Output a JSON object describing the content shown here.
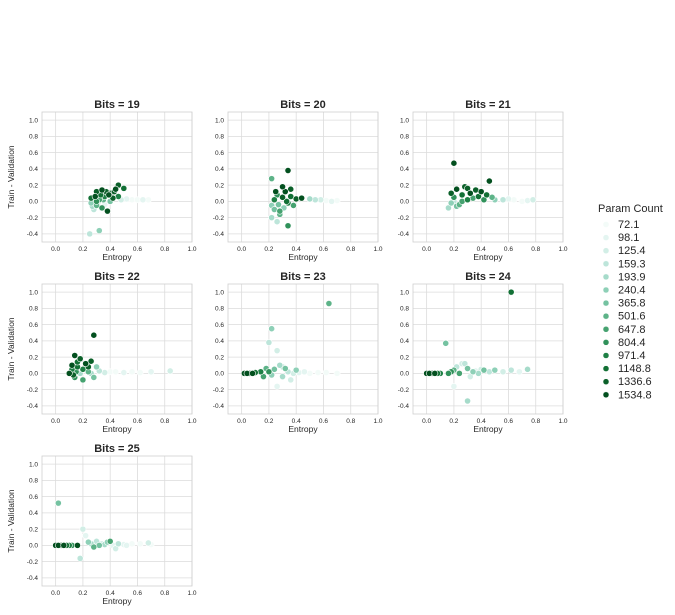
{
  "chart_data": {
    "type": "scatter",
    "xlabel": "Entropy",
    "ylabel": "Train - Validation",
    "xlim": [
      -0.1,
      1.0
    ],
    "ylim": [
      -0.5,
      1.1
    ],
    "xticks": [
      "0.0",
      "0.2",
      "0.4",
      "0.6",
      "0.8",
      "1.0"
    ],
    "yticks": [
      "-0.4",
      "-0.2",
      "0.0",
      "0.2",
      "0.4",
      "0.6",
      "0.8",
      "1.0"
    ],
    "grid": true,
    "legend": {
      "title": "Param Count",
      "placement": "right",
      "entries": [
        "72.1",
        "98.1",
        "125.4",
        "159.3",
        "193.9",
        "240.4",
        "365.8",
        "501.6",
        "647.8",
        "804.4",
        "971.4",
        "1148.8",
        "1336.6",
        "1534.8"
      ],
      "colors": [
        "#f3fbf8",
        "#e4f5f1",
        "#d2eee6",
        "#bde5da",
        "#a6dbca",
        "#8ed0b7",
        "#75c2a1",
        "#5db388",
        "#46a270",
        "#30915a",
        "#1e8045",
        "#127035",
        "#0b6029",
        "#03501f"
      ]
    },
    "panels": [
      {
        "title": "Bits = 19",
        "points": [
          [
            0.56,
            0.02,
            0
          ],
          [
            0.6,
            0.02,
            0
          ],
          [
            0.64,
            0.02,
            1
          ],
          [
            0.68,
            0.02,
            0
          ],
          [
            0.52,
            0.03,
            1
          ],
          [
            0.48,
            0.02,
            2
          ],
          [
            0.26,
            -0.02,
            5
          ],
          [
            0.28,
            0.04,
            6
          ],
          [
            0.3,
            -0.05,
            7
          ],
          [
            0.32,
            0.02,
            8
          ],
          [
            0.34,
            -0.08,
            9
          ],
          [
            0.36,
            0.06,
            10
          ],
          [
            0.4,
            0.1,
            11
          ],
          [
            0.42,
            0.04,
            12
          ],
          [
            0.44,
            0.15,
            13
          ],
          [
            0.38,
            -0.12,
            13
          ],
          [
            0.28,
            -0.1,
            3
          ],
          [
            0.3,
            0.12,
            12
          ],
          [
            0.34,
            0.14,
            13
          ],
          [
            0.46,
            0.06,
            10
          ],
          [
            0.5,
            0.16,
            11
          ],
          [
            0.25,
            -0.4,
            3
          ],
          [
            0.32,
            -0.36,
            5
          ],
          [
            0.46,
            0.2,
            12
          ],
          [
            0.27,
            -0.06,
            4
          ],
          [
            0.3,
            0.0,
            9
          ],
          [
            0.33,
            0.08,
            11
          ],
          [
            0.37,
            0.12,
            12
          ],
          [
            0.4,
            0.0,
            6
          ],
          [
            0.29,
            0.06,
            13
          ],
          [
            0.31,
            -0.02,
            2
          ],
          [
            0.35,
            0.02,
            7
          ],
          [
            0.39,
            0.08,
            13
          ],
          [
            0.43,
            0.12,
            12
          ],
          [
            0.26,
            0.04,
            11
          ],
          [
            0.36,
            -0.04,
            1
          ]
        ]
      },
      {
        "title": "Bits = 20",
        "points": [
          [
            0.62,
            0.01,
            0
          ],
          [
            0.66,
            0.0,
            1
          ],
          [
            0.7,
            0.01,
            0
          ],
          [
            0.58,
            0.02,
            2
          ],
          [
            0.54,
            0.02,
            3
          ],
          [
            0.5,
            0.03,
            4
          ],
          [
            0.22,
            0.28,
            7
          ],
          [
            0.34,
            0.38,
            13
          ],
          [
            0.22,
            -0.05,
            5
          ],
          [
            0.24,
            -0.1,
            6
          ],
          [
            0.26,
            0.08,
            9
          ],
          [
            0.28,
            -0.12,
            8
          ],
          [
            0.3,
            0.05,
            12
          ],
          [
            0.32,
            0.12,
            13
          ],
          [
            0.34,
            -0.02,
            10
          ],
          [
            0.36,
            0.06,
            11
          ],
          [
            0.4,
            0.03,
            12
          ],
          [
            0.44,
            0.04,
            13
          ],
          [
            0.22,
            -0.2,
            4
          ],
          [
            0.26,
            -0.25,
            3
          ],
          [
            0.28,
            -0.16,
            7
          ],
          [
            0.34,
            -0.3,
            9
          ],
          [
            0.3,
            0.18,
            13
          ],
          [
            0.36,
            0.15,
            12
          ],
          [
            0.24,
            0.02,
            10
          ],
          [
            0.27,
            -0.04,
            6
          ],
          [
            0.31,
            -0.08,
            5
          ],
          [
            0.33,
            0.0,
            11
          ],
          [
            0.38,
            -0.05,
            8
          ],
          [
            0.25,
            0.12,
            13
          ]
        ]
      },
      {
        "title": "Bits = 21",
        "points": [
          [
            0.7,
            0.0,
            0
          ],
          [
            0.74,
            0.01,
            1
          ],
          [
            0.78,
            0.02,
            2
          ],
          [
            0.64,
            0.02,
            0
          ],
          [
            0.6,
            0.03,
            1
          ],
          [
            0.56,
            0.02,
            3
          ],
          [
            0.2,
            0.47,
            13
          ],
          [
            0.16,
            -0.08,
            4
          ],
          [
            0.18,
            -0.02,
            5
          ],
          [
            0.2,
            0.05,
            9
          ],
          [
            0.22,
            0.15,
            13
          ],
          [
            0.24,
            -0.04,
            7
          ],
          [
            0.26,
            0.08,
            11
          ],
          [
            0.28,
            0.18,
            12
          ],
          [
            0.3,
            0.02,
            10
          ],
          [
            0.32,
            0.1,
            13
          ],
          [
            0.34,
            0.04,
            8
          ],
          [
            0.36,
            0.14,
            12
          ],
          [
            0.38,
            0.06,
            11
          ],
          [
            0.4,
            0.12,
            13
          ],
          [
            0.42,
            0.02,
            9
          ],
          [
            0.46,
            0.25,
            13
          ],
          [
            0.18,
            0.1,
            12
          ],
          [
            0.22,
            -0.06,
            6
          ],
          [
            0.48,
            0.05,
            7
          ],
          [
            0.5,
            0.02,
            5
          ],
          [
            0.2,
            0.0,
            3
          ],
          [
            0.44,
            0.08,
            11
          ],
          [
            0.3,
            0.16,
            12
          ],
          [
            0.26,
            0.0,
            8
          ]
        ]
      },
      {
        "title": "Bits = 22",
        "points": [
          [
            0.4,
            0.02,
            0
          ],
          [
            0.44,
            0.02,
            0
          ],
          [
            0.5,
            0.01,
            1
          ],
          [
            0.56,
            0.02,
            0
          ],
          [
            0.62,
            0.01,
            0
          ],
          [
            0.7,
            0.02,
            1
          ],
          [
            0.84,
            0.03,
            2
          ],
          [
            0.36,
            0.01,
            2
          ],
          [
            0.32,
            0.03,
            3
          ],
          [
            0.28,
            0.47,
            13
          ],
          [
            0.14,
            0.22,
            13
          ],
          [
            0.18,
            0.18,
            12
          ],
          [
            0.12,
            0.05,
            10
          ],
          [
            0.14,
            -0.05,
            9
          ],
          [
            0.16,
            0.08,
            11
          ],
          [
            0.2,
            -0.08,
            8
          ],
          [
            0.22,
            0.12,
            13
          ],
          [
            0.26,
            0.15,
            12
          ],
          [
            0.24,
            0.02,
            7
          ],
          [
            0.28,
            -0.05,
            6
          ],
          [
            0.3,
            0.08,
            5
          ],
          [
            0.1,
            0.0,
            13
          ],
          [
            0.13,
            -0.02,
            12
          ],
          [
            0.18,
            0.0,
            4
          ],
          [
            0.2,
            0.05,
            10
          ],
          [
            0.16,
            0.14,
            11
          ],
          [
            0.12,
            0.1,
            13
          ],
          [
            0.15,
            0.02,
            9
          ],
          [
            0.24,
            0.08,
            12
          ],
          [
            0.26,
            0.0,
            4
          ]
        ]
      },
      {
        "title": "Bits = 23",
        "points": [
          [
            0.02,
            0.0,
            13
          ],
          [
            0.04,
            0.0,
            13
          ],
          [
            0.06,
            0.0,
            12
          ],
          [
            0.08,
            0.0,
            13
          ],
          [
            0.1,
            0.01,
            11
          ],
          [
            0.14,
            0.02,
            10
          ],
          [
            0.22,
            0.55,
            5
          ],
          [
            0.64,
            0.86,
            7
          ],
          [
            0.2,
            0.38,
            3
          ],
          [
            0.26,
            0.28,
            2
          ],
          [
            0.18,
            0.06,
            7
          ],
          [
            0.24,
            0.05,
            6
          ],
          [
            0.3,
            -0.04,
            4
          ],
          [
            0.32,
            0.06,
            6
          ],
          [
            0.34,
            0.02,
            3
          ],
          [
            0.38,
            0.0,
            2
          ],
          [
            0.42,
            0.01,
            1
          ],
          [
            0.46,
            0.02,
            1
          ],
          [
            0.5,
            0.0,
            0
          ],
          [
            0.56,
            0.01,
            0
          ],
          [
            0.62,
            0.01,
            0
          ],
          [
            0.7,
            0.0,
            0
          ],
          [
            0.22,
            -0.02,
            5
          ],
          [
            0.28,
            0.1,
            4
          ],
          [
            0.16,
            -0.04,
            8
          ],
          [
            0.26,
            -0.16,
            1
          ],
          [
            0.36,
            -0.08,
            2
          ],
          [
            0.4,
            0.04,
            5
          ],
          [
            0.2,
            0.02,
            9
          ],
          [
            0.3,
            0.08,
            3
          ]
        ]
      },
      {
        "title": "Bits = 24",
        "points": [
          [
            0.0,
            0.0,
            13
          ],
          [
            0.02,
            0.0,
            13
          ],
          [
            0.04,
            0.0,
            12
          ],
          [
            0.06,
            0.0,
            13
          ],
          [
            0.08,
            0.0,
            11
          ],
          [
            0.1,
            0.0,
            10
          ],
          [
            0.62,
            1.0,
            11
          ],
          [
            0.14,
            0.37,
            6
          ],
          [
            0.2,
            -0.16,
            1
          ],
          [
            0.3,
            -0.34,
            4
          ],
          [
            0.26,
            0.12,
            2
          ],
          [
            0.28,
            0.12,
            3
          ],
          [
            0.3,
            0.06,
            6
          ],
          [
            0.34,
            0.02,
            5
          ],
          [
            0.38,
            0.0,
            4
          ],
          [
            0.42,
            0.04,
            6
          ],
          [
            0.46,
            0.02,
            3
          ],
          [
            0.5,
            0.04,
            5
          ],
          [
            0.56,
            0.02,
            2
          ],
          [
            0.62,
            0.04,
            3
          ],
          [
            0.68,
            0.02,
            1
          ],
          [
            0.74,
            0.05,
            4
          ],
          [
            0.2,
            0.04,
            7
          ],
          [
            0.24,
            0.0,
            8
          ],
          [
            0.18,
            0.02,
            9
          ],
          [
            0.32,
            -0.04,
            2
          ],
          [
            0.36,
            0.03,
            1
          ],
          [
            0.16,
            0.0,
            9
          ],
          [
            0.22,
            0.08,
            3
          ],
          [
            0.4,
            0.05,
            2
          ]
        ]
      },
      {
        "title": "Bits = 25",
        "points": [
          [
            0.0,
            0.0,
            13
          ],
          [
            0.02,
            0.0,
            13
          ],
          [
            0.04,
            0.0,
            12
          ],
          [
            0.06,
            0.0,
            13
          ],
          [
            0.08,
            0.0,
            11
          ],
          [
            0.1,
            0.0,
            10
          ],
          [
            0.12,
            0.0,
            9
          ],
          [
            0.16,
            0.0,
            13
          ],
          [
            0.02,
            0.52,
            6
          ],
          [
            0.2,
            0.2,
            2
          ],
          [
            0.22,
            0.12,
            1
          ],
          [
            0.24,
            0.04,
            5
          ],
          [
            0.26,
            0.02,
            4
          ],
          [
            0.3,
            0.05,
            3
          ],
          [
            0.32,
            0.0,
            6
          ],
          [
            0.34,
            0.02,
            2
          ],
          [
            0.38,
            0.04,
            5
          ],
          [
            0.42,
            0.0,
            1
          ],
          [
            0.46,
            0.02,
            3
          ],
          [
            0.5,
            0.01,
            1
          ],
          [
            0.56,
            0.02,
            0
          ],
          [
            0.62,
            0.02,
            0
          ],
          [
            0.68,
            0.03,
            2
          ],
          [
            0.7,
            0.01,
            0
          ],
          [
            0.18,
            -0.16,
            3
          ],
          [
            0.28,
            -0.02,
            7
          ],
          [
            0.36,
            0.01,
            4
          ],
          [
            0.4,
            0.05,
            8
          ],
          [
            0.44,
            -0.04,
            2
          ],
          [
            0.52,
            0.0,
            1
          ]
        ]
      }
    ]
  }
}
